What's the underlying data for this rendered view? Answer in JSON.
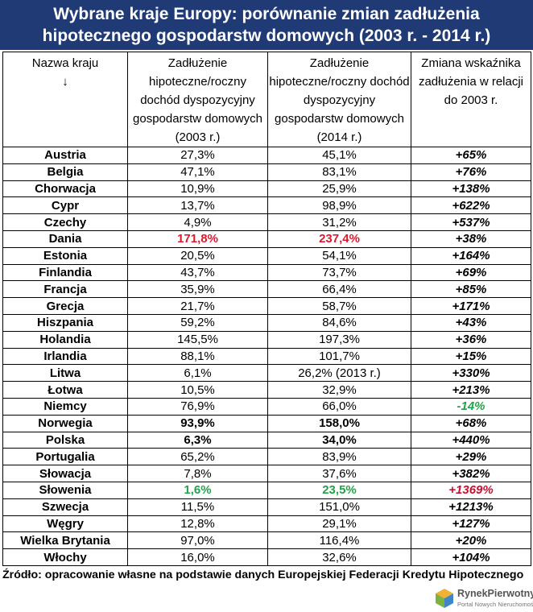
{
  "title": {
    "line1": "Wybrane kraje Europy: porównanie zmian zadłużenia",
    "line2": "hipotecznego gospodarstw domowych (2003 r. - 2014 r.)"
  },
  "headers": {
    "country": "Nazwa kraju",
    "country_arrow": "↓",
    "col2003": "Zadłużenie hipoteczne/roczny dochód dyspozycyjny gospodarstw domowych (2003 r.)",
    "col2014": "Zadłużenie hipoteczne/roczny dochód dyspozycyjny gospodarstw domowych (2014 r.)",
    "change": "Zmiana wskaźnika zadłużenia w relacji do 2003 r."
  },
  "rows": [
    {
      "country": "Austria",
      "v2003": "27,3%",
      "v2014": "45,1%",
      "change": "+65%"
    },
    {
      "country": "Belgia",
      "v2003": "47,1%",
      "v2014": "83,1%",
      "change": "+76%"
    },
    {
      "country": "Chorwacja",
      "v2003": "10,9%",
      "v2014": "25,9%",
      "change": "+138%"
    },
    {
      "country": "Cypr",
      "v2003": "13,7%",
      "v2014": "98,9%",
      "change": "+622%"
    },
    {
      "country": "Czechy",
      "v2003": "4,9%",
      "v2014": "31,2%",
      "change": "+537%"
    },
    {
      "country": "Dania",
      "v2003": "171,8%",
      "v2014": "237,4%",
      "change": "+38%"
    },
    {
      "country": "Estonia",
      "v2003": "20,5%",
      "v2014": "54,1%",
      "change": "+164%"
    },
    {
      "country": "Finlandia",
      "v2003": "43,7%",
      "v2014": "73,7%",
      "change": "+69%"
    },
    {
      "country": "Francja",
      "v2003": "35,9%",
      "v2014": "66,4%",
      "change": "+85%"
    },
    {
      "country": "Grecja",
      "v2003": "21,7%",
      "v2014": "58,7%",
      "change": "+171%"
    },
    {
      "country": "Hiszpania",
      "v2003": "59,2%",
      "v2014": "84,6%",
      "change": "+43%"
    },
    {
      "country": "Holandia",
      "v2003": "145,5%",
      "v2014": "197,3%",
      "change": "+36%"
    },
    {
      "country": "Irlandia",
      "v2003": "88,1%",
      "v2014": "101,7%",
      "change": "+15%"
    },
    {
      "country": "Litwa",
      "v2003": "6,1%",
      "v2014": "26,2% (2013 r.)",
      "change": "+330%"
    },
    {
      "country": "Łotwa",
      "v2003": "10,5%",
      "v2014": "32,9%",
      "change": "+213%"
    },
    {
      "country": "Niemcy",
      "v2003": "76,9%",
      "v2014": "66,0%",
      "change": "-14%"
    },
    {
      "country": "Norwegia",
      "v2003": "93,9%",
      "v2014": "158,0%",
      "change": "+68%"
    },
    {
      "country": "Polska",
      "v2003": "6,3%",
      "v2014": "34,0%",
      "change": "+440%"
    },
    {
      "country": "Portugalia",
      "v2003": "65,2%",
      "v2014": "83,9%",
      "change": "+29%"
    },
    {
      "country": "Słowacja",
      "v2003": "7,8%",
      "v2014": "37,6%",
      "change": "+382%"
    },
    {
      "country": "Słowenia",
      "v2003": "1,6%",
      "v2014": "23,5%",
      "change": "+1369%"
    },
    {
      "country": "Szwecja",
      "v2003": "11,5%",
      "v2014": "151,0%",
      "change": "+1213%"
    },
    {
      "country": "Węgry",
      "v2003": "12,8%",
      "v2014": "29,1%",
      "change": "+127%"
    },
    {
      "country": "Wielka Brytania",
      "v2003": "97,0%",
      "v2014": "116,4%",
      "change": "+20%"
    },
    {
      "country": "Włochy",
      "v2003": "16,0%",
      "v2014": "32,6%",
      "change": "+104%"
    }
  ],
  "source": "Źródło: opracowanie własne na podstawie danych Europejskiej Federacji Kredytu Hipotecznego",
  "logo": {
    "name": "RynekPierwotny",
    "tagline": "Portal Nowych Nieruchomości"
  },
  "colors": {
    "title_bg": "#1f3a74",
    "highlight_red": "#e0182d",
    "highlight_green": "#21a34a"
  }
}
